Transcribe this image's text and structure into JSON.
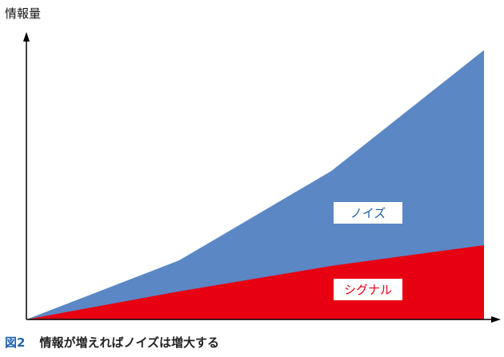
{
  "chart_data": {
    "type": "area",
    "title": "",
    "ylabel": "情報量",
    "xlabel": "",
    "x": [
      0,
      1,
      2,
      3
    ],
    "ylim": [
      0,
      100
    ],
    "xlim": [
      0,
      3.07
    ],
    "grid": false,
    "stacked": false,
    "series": [
      {
        "name": "ノイズ",
        "values": [
          0,
          20.8,
          52.4,
          95
        ],
        "color": "#5b87c5",
        "label_color": "#1f5fa8"
      },
      {
        "name": "シグナル",
        "values": [
          0,
          9.9,
          18.9,
          26.2
        ],
        "color": "#e60012",
        "label_color": "#e60012"
      }
    ]
  },
  "caption": {
    "figure": "図2",
    "text": "情報が増えればノイズは増大する"
  }
}
